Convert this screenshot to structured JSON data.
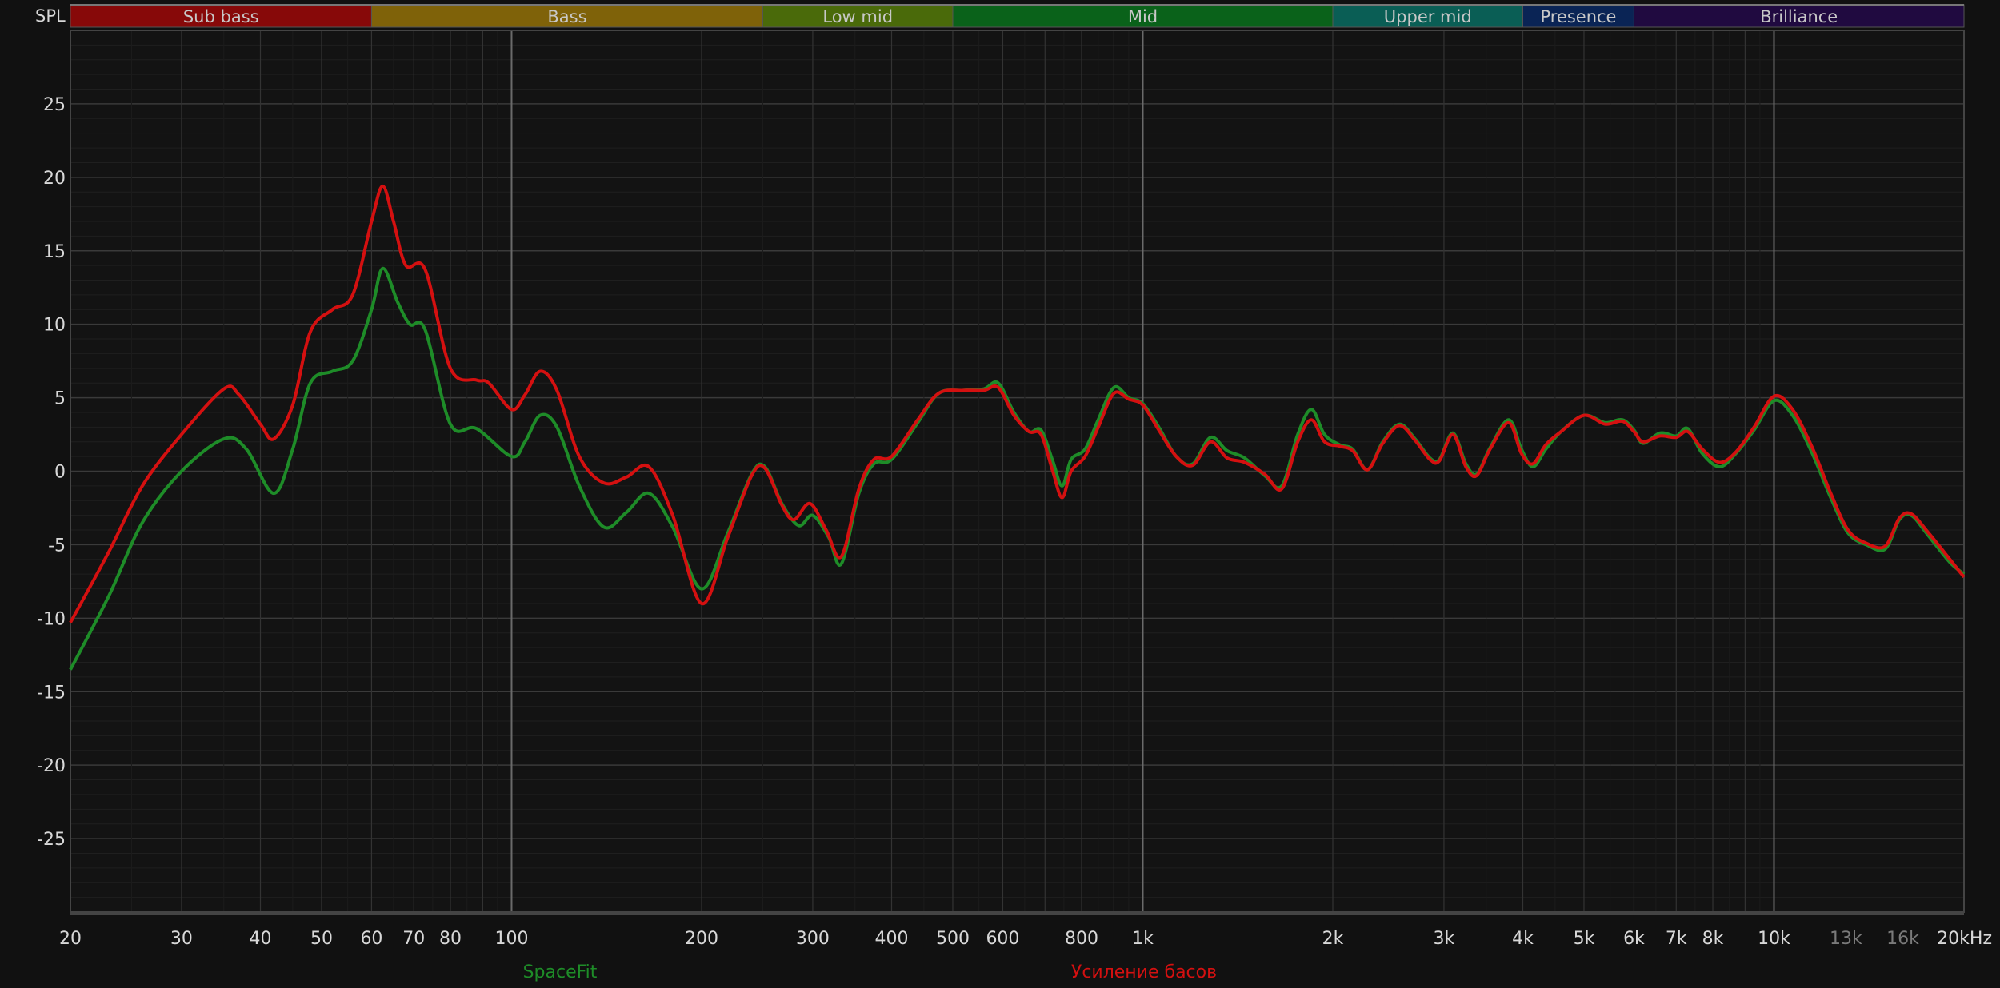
{
  "chart_data": {
    "type": "line",
    "ylabel": "SPL",
    "xlim": [
      20,
      20000
    ],
    "ylim": [
      -30,
      30
    ],
    "xscale": "log",
    "grid": true,
    "x_ticks": [
      {
        "v": 20,
        "label": "20"
      },
      {
        "v": 30,
        "label": "30"
      },
      {
        "v": 40,
        "label": "40"
      },
      {
        "v": 50,
        "label": "50"
      },
      {
        "v": 60,
        "label": "60"
      },
      {
        "v": 70,
        "label": "70"
      },
      {
        "v": 80,
        "label": "80"
      },
      {
        "v": 100,
        "label": "100"
      },
      {
        "v": 200,
        "label": "200"
      },
      {
        "v": 300,
        "label": "300"
      },
      {
        "v": 400,
        "label": "400"
      },
      {
        "v": 500,
        "label": "500"
      },
      {
        "v": 600,
        "label": "600"
      },
      {
        "v": 800,
        "label": "800"
      },
      {
        "v": 1000,
        "label": "1k"
      },
      {
        "v": 2000,
        "label": "2k"
      },
      {
        "v": 3000,
        "label": "3k"
      },
      {
        "v": 4000,
        "label": "4k"
      },
      {
        "v": 5000,
        "label": "5k"
      },
      {
        "v": 6000,
        "label": "6k"
      },
      {
        "v": 7000,
        "label": "7k"
      },
      {
        "v": 8000,
        "label": "8k"
      },
      {
        "v": 10000,
        "label": "10k"
      },
      {
        "v": 13000,
        "label": "13k",
        "dim": true
      },
      {
        "v": 16000,
        "label": "16k",
        "dim": true
      },
      {
        "v": 20000,
        "label": "20kHz"
      }
    ],
    "y_ticks": [
      25,
      20,
      15,
      10,
      5,
      0,
      -5,
      -10,
      -15,
      -20,
      -25
    ],
    "bands": [
      {
        "name": "Sub bass",
        "from": 20,
        "to": 60,
        "color": "#870909"
      },
      {
        "name": "Bass",
        "from": 60,
        "to": 250,
        "color": "#7f6209"
      },
      {
        "name": "Low mid",
        "from": 250,
        "to": 500,
        "color": "#4a6a0a"
      },
      {
        "name": "Mid",
        "from": 500,
        "to": 2000,
        "color": "#0a621a"
      },
      {
        "name": "Upper mid",
        "from": 2000,
        "to": 4000,
        "color": "#0a5e55"
      },
      {
        "name": "Presence",
        "from": 4000,
        "to": 6000,
        "color": "#0a2455"
      },
      {
        "name": "Brilliance",
        "from": 6000,
        "to": 20000,
        "color": "#200a40"
      }
    ],
    "legend_placement": "bottom",
    "series": [
      {
        "name": "SpaceFit",
        "color": "#1e8c28",
        "points": [
          [
            20,
            -13.5
          ],
          [
            23,
            -8.5
          ],
          [
            26,
            -3.5
          ],
          [
            30,
            0
          ],
          [
            35,
            2.2
          ],
          [
            38,
            1.5
          ],
          [
            42,
            -1.5
          ],
          [
            45,
            1.5
          ],
          [
            48,
            6
          ],
          [
            52,
            6.8
          ],
          [
            56,
            7.5
          ],
          [
            60,
            11
          ],
          [
            62.5,
            13.8
          ],
          [
            66,
            11.5
          ],
          [
            69,
            10
          ],
          [
            73,
            9.6
          ],
          [
            80,
            3.2
          ],
          [
            88,
            2.9
          ],
          [
            100,
            1
          ],
          [
            105,
            2
          ],
          [
            111,
            3.8
          ],
          [
            118,
            3
          ],
          [
            128,
            -1
          ],
          [
            140,
            -3.8
          ],
          [
            152,
            -2.8
          ],
          [
            165,
            -1.5
          ],
          [
            180,
            -3.8
          ],
          [
            200,
            -8
          ],
          [
            220,
            -4.2
          ],
          [
            240,
            -0.2
          ],
          [
            252,
            0.3
          ],
          [
            268,
            -2.2
          ],
          [
            285,
            -3.7
          ],
          [
            300,
            -3
          ],
          [
            318,
            -4.5
          ],
          [
            333,
            -6.3
          ],
          [
            355,
            -1.5
          ],
          [
            375,
            0.5
          ],
          [
            400,
            0.8
          ],
          [
            440,
            3.3
          ],
          [
            475,
            5.3
          ],
          [
            520,
            5.5
          ],
          [
            560,
            5.6
          ],
          [
            590,
            6
          ],
          [
            625,
            4
          ],
          [
            660,
            2.7
          ],
          [
            690,
            2.8
          ],
          [
            720,
            0.7
          ],
          [
            745,
            -1
          ],
          [
            770,
            0.8
          ],
          [
            810,
            1.5
          ],
          [
            850,
            3.5
          ],
          [
            900,
            5.7
          ],
          [
            950,
            5
          ],
          [
            1000,
            4.6
          ],
          [
            1060,
            3
          ],
          [
            1130,
            1
          ],
          [
            1200,
            0.5
          ],
          [
            1280,
            2.3
          ],
          [
            1360,
            1.4
          ],
          [
            1450,
            0.9
          ],
          [
            1560,
            -0.3
          ],
          [
            1660,
            -1
          ],
          [
            1760,
            2.5
          ],
          [
            1850,
            4.2
          ],
          [
            1940,
            2.5
          ],
          [
            2050,
            1.8
          ],
          [
            2150,
            1.5
          ],
          [
            2270,
            0.1
          ],
          [
            2400,
            2
          ],
          [
            2550,
            3.2
          ],
          [
            2700,
            2.2
          ],
          [
            2850,
            0.9
          ],
          [
            2950,
            0.8
          ],
          [
            3100,
            2.6
          ],
          [
            3250,
            0.5
          ],
          [
            3380,
            -0.2
          ],
          [
            3550,
            1.6
          ],
          [
            3800,
            3.5
          ],
          [
            3980,
            1.5
          ],
          [
            4150,
            0.3
          ],
          [
            4350,
            1.5
          ],
          [
            4600,
            2.7
          ],
          [
            5000,
            3.8
          ],
          [
            5400,
            3.3
          ],
          [
            5750,
            3.5
          ],
          [
            6000,
            2.8
          ],
          [
            6200,
            1.9
          ],
          [
            6600,
            2.6
          ],
          [
            7000,
            2.4
          ],
          [
            7300,
            2.9
          ],
          [
            7700,
            1.2
          ],
          [
            8200,
            0.3
          ],
          [
            8700,
            1.2
          ],
          [
            9300,
            2.8
          ],
          [
            10000,
            4.8
          ],
          [
            10700,
            3.8
          ],
          [
            11500,
            1.2
          ],
          [
            12300,
            -1.8
          ],
          [
            13100,
            -4.2
          ],
          [
            14000,
            -5
          ],
          [
            15000,
            -5.3
          ],
          [
            15800,
            -3.3
          ],
          [
            16500,
            -3
          ],
          [
            17500,
            -4.3
          ],
          [
            19000,
            -6.2
          ],
          [
            20000,
            -7
          ]
        ]
      },
      {
        "name": "Усиление басов",
        "color": "#d41010",
        "points": [
          [
            20,
            -10.3
          ],
          [
            23,
            -5.5
          ],
          [
            26,
            -1
          ],
          [
            30,
            2.5
          ],
          [
            35,
            5.6
          ],
          [
            37,
            5.2
          ],
          [
            40,
            3.2
          ],
          [
            42,
            2.2
          ],
          [
            45,
            4.5
          ],
          [
            48,
            9.5
          ],
          [
            52,
            11
          ],
          [
            56,
            12
          ],
          [
            60,
            17
          ],
          [
            62.5,
            19.4
          ],
          [
            65,
            17
          ],
          [
            68,
            14
          ],
          [
            73,
            13.7
          ],
          [
            80,
            7
          ],
          [
            88,
            6.2
          ],
          [
            92,
            6
          ],
          [
            100,
            4.2
          ],
          [
            105,
            5.2
          ],
          [
            111,
            6.8
          ],
          [
            118,
            5.5
          ],
          [
            128,
            1
          ],
          [
            140,
            -0.8
          ],
          [
            152,
            -0.4
          ],
          [
            165,
            0.3
          ],
          [
            180,
            -3
          ],
          [
            200,
            -9
          ],
          [
            220,
            -4.5
          ],
          [
            240,
            -0.3
          ],
          [
            252,
            0.2
          ],
          [
            268,
            -2.3
          ],
          [
            280,
            -3.3
          ],
          [
            297,
            -2.2
          ],
          [
            315,
            -4
          ],
          [
            333,
            -5.8
          ],
          [
            355,
            -1.2
          ],
          [
            375,
            0.8
          ],
          [
            400,
            1
          ],
          [
            440,
            3.5
          ],
          [
            475,
            5.3
          ],
          [
            520,
            5.5
          ],
          [
            560,
            5.5
          ],
          [
            590,
            5.7
          ],
          [
            625,
            3.8
          ],
          [
            660,
            2.7
          ],
          [
            690,
            2.5
          ],
          [
            720,
            0
          ],
          [
            745,
            -1.8
          ],
          [
            770,
            0
          ],
          [
            810,
            1
          ],
          [
            850,
            3
          ],
          [
            900,
            5.3
          ],
          [
            950,
            4.9
          ],
          [
            1000,
            4.5
          ],
          [
            1060,
            2.8
          ],
          [
            1130,
            1
          ],
          [
            1200,
            0.4
          ],
          [
            1280,
            2
          ],
          [
            1360,
            0.9
          ],
          [
            1450,
            0.6
          ],
          [
            1560,
            -0.2
          ],
          [
            1660,
            -1.2
          ],
          [
            1760,
            2
          ],
          [
            1850,
            3.5
          ],
          [
            1940,
            2
          ],
          [
            2050,
            1.7
          ],
          [
            2150,
            1.4
          ],
          [
            2270,
            0.1
          ],
          [
            2400,
            1.9
          ],
          [
            2550,
            3.1
          ],
          [
            2700,
            2.1
          ],
          [
            2850,
            0.8
          ],
          [
            2950,
            0.7
          ],
          [
            3100,
            2.5
          ],
          [
            3250,
            0.3
          ],
          [
            3380,
            -0.3
          ],
          [
            3550,
            1.5
          ],
          [
            3800,
            3.3
          ],
          [
            3980,
            1.2
          ],
          [
            4150,
            0.5
          ],
          [
            4350,
            1.8
          ],
          [
            4600,
            2.7
          ],
          [
            5000,
            3.8
          ],
          [
            5400,
            3.2
          ],
          [
            5750,
            3.4
          ],
          [
            6000,
            2.7
          ],
          [
            6200,
            2
          ],
          [
            6600,
            2.4
          ],
          [
            7000,
            2.3
          ],
          [
            7300,
            2.7
          ],
          [
            7700,
            1.5
          ],
          [
            8200,
            0.6
          ],
          [
            8700,
            1.3
          ],
          [
            9300,
            3
          ],
          [
            10000,
            5.1
          ],
          [
            10700,
            4.2
          ],
          [
            11500,
            1.6
          ],
          [
            12300,
            -1.5
          ],
          [
            13100,
            -4
          ],
          [
            14000,
            -4.9
          ],
          [
            15000,
            -5.1
          ],
          [
            15800,
            -3.2
          ],
          [
            16500,
            -2.9
          ],
          [
            17500,
            -4.1
          ],
          [
            19000,
            -6
          ],
          [
            20000,
            -7.2
          ]
        ]
      }
    ]
  }
}
